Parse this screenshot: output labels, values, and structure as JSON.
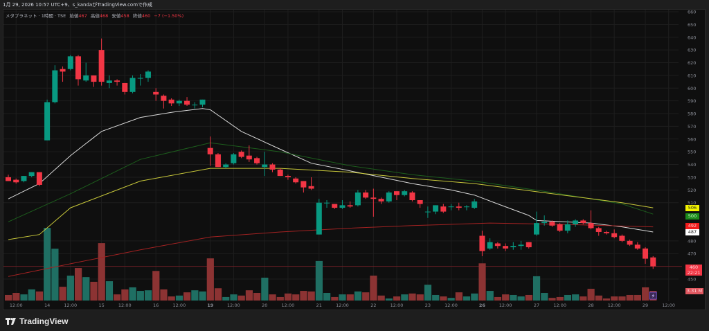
{
  "header": {
    "caption": "1月 29, 2026 10:57 UTC+9、s_kandaがTradingView.comで作成"
  },
  "legend": {
    "symbol": "メタプラネット · 1時間 · TSE",
    "open_label": "始値",
    "open": "467",
    "high_label": "高値",
    "high": "468",
    "low_label": "安値",
    "low": "458",
    "close_label": "終値",
    "close": "460",
    "change": "−7 (−1.50%)"
  },
  "footer": {
    "brand": "TradingView"
  },
  "badges": {
    "ma_yellow": {
      "value": "506",
      "bg": "#f2f200",
      "fg": "#1e1e1e"
    },
    "ma_green": {
      "value": "500",
      "bg": "#1b8a1b",
      "fg": "#d0ffd0"
    },
    "ma_red": {
      "value": "492",
      "bg": "#f21c1c",
      "fg": "#ffd0d0"
    },
    "ma_white": {
      "value": "487",
      "bg": "#ffffff",
      "fg": "#1e1e1e"
    },
    "last_price": {
      "value": "460",
      "countdown": "22:21",
      "bg": "#f23645"
    },
    "last_volume": {
      "value": "3.31 M",
      "bg": "#e0575f"
    }
  },
  "colors": {
    "up": "#089981",
    "down": "#f23645",
    "vol_up": "#1f6f63",
    "vol_down": "#8c3333",
    "grid": "#1e1e1e"
  },
  "chart_data": {
    "type": "candlestick",
    "ylim": [
      445,
      662
    ],
    "y_ticks": [
      660,
      650,
      640,
      630,
      620,
      610,
      600,
      590,
      580,
      570,
      560,
      550,
      540,
      530,
      520,
      510,
      480,
      470,
      450
    ],
    "x_labels": [
      "12:00",
      "14",
      "12:00",
      "15",
      "12:00",
      "16",
      "12:00",
      "19",
      "12:00",
      "20",
      "12:00",
      "21",
      "12:00",
      "22",
      "12:00",
      "23",
      "12:00",
      "26",
      "12:00",
      "27",
      "12:00",
      "28",
      "12:00",
      "29",
      "12:00"
    ],
    "bold_x_labels": [
      "19",
      "26"
    ],
    "ohlc": [
      [
        530,
        532,
        527,
        527
      ],
      [
        528,
        529,
        525,
        526
      ],
      [
        527,
        531,
        526,
        531
      ],
      [
        531,
        534,
        530,
        534
      ],
      [
        534,
        534,
        523,
        524
      ],
      [
        559,
        591,
        559,
        589
      ],
      [
        589,
        618,
        588,
        614
      ],
      [
        615,
        617,
        605,
        613
      ],
      [
        615,
        626,
        614,
        625
      ],
      [
        625,
        626,
        602,
        607
      ],
      [
        606,
        620,
        605,
        610
      ],
      [
        610,
        610,
        601,
        605
      ],
      [
        630,
        639,
        602,
        605
      ],
      [
        604,
        610,
        600,
        606
      ],
      [
        606,
        607,
        602,
        605
      ],
      [
        604,
        604,
        595,
        597
      ],
      [
        597,
        610,
        596,
        608
      ],
      [
        608,
        611,
        602,
        608
      ],
      [
        608,
        614,
        605,
        613
      ],
      [
        597,
        600,
        590,
        595
      ],
      [
        594,
        595,
        584,
        590
      ],
      [
        591,
        592,
        586,
        588
      ],
      [
        588,
        591,
        586,
        590
      ],
      [
        590,
        593,
        586,
        587
      ],
      [
        587,
        589,
        584,
        587
      ],
      [
        587,
        591,
        585,
        591
      ],
      [
        553,
        562,
        539,
        548
      ],
      [
        548,
        549,
        538,
        538
      ],
      [
        538,
        541,
        537,
        540
      ],
      [
        541,
        549,
        540,
        548
      ],
      [
        550,
        551,
        545,
        546
      ],
      [
        547,
        555,
        542,
        544
      ],
      [
        545,
        546,
        540,
        541
      ],
      [
        538,
        550,
        531,
        540
      ],
      [
        540,
        541,
        534,
        536
      ],
      [
        536,
        537,
        531,
        531
      ],
      [
        531,
        532,
        528,
        530
      ],
      [
        529,
        530,
        525,
        526
      ],
      [
        527,
        527,
        518,
        522
      ],
      [
        523,
        530,
        520,
        521
      ],
      [
        485,
        513,
        485,
        510
      ],
      [
        510,
        512,
        506,
        510
      ],
      [
        509,
        509,
        505,
        506
      ],
      [
        506,
        512,
        505,
        508
      ],
      [
        508,
        511,
        506,
        507
      ],
      [
        508,
        520,
        507,
        518
      ],
      [
        518,
        520,
        513,
        514
      ],
      [
        514,
        521,
        499,
        513
      ],
      [
        513,
        514,
        509,
        511
      ],
      [
        511,
        519,
        510,
        518
      ],
      [
        519,
        519,
        512,
        516
      ],
      [
        516,
        520,
        515,
        519
      ],
      [
        518,
        519,
        511,
        512
      ],
      [
        512,
        512,
        506,
        509
      ],
      [
        503,
        507,
        498,
        503
      ],
      [
        503,
        508,
        501,
        508
      ],
      [
        507,
        509,
        502,
        503
      ],
      [
        507,
        509,
        504,
        507
      ],
      [
        507,
        510,
        504,
        506
      ],
      [
        507,
        508,
        504,
        507
      ],
      [
        506,
        513,
        505,
        511
      ],
      [
        484,
        488,
        468,
        472
      ],
      [
        474,
        482,
        473,
        479
      ],
      [
        478,
        479,
        474,
        476
      ],
      [
        476,
        478,
        472,
        474
      ],
      [
        475,
        479,
        473,
        476
      ],
      [
        476,
        480,
        473,
        477
      ],
      [
        479,
        479,
        474,
        475
      ],
      [
        485,
        503,
        484,
        494
      ],
      [
        494,
        500,
        492,
        495
      ],
      [
        495,
        496,
        491,
        492
      ],
      [
        493,
        494,
        487,
        488
      ],
      [
        488,
        496,
        486,
        493
      ],
      [
        493,
        497,
        491,
        496
      ],
      [
        496,
        497,
        493,
        494
      ],
      [
        494,
        504,
        489,
        490
      ],
      [
        490,
        491,
        484,
        487
      ],
      [
        487,
        488,
        485,
        486
      ],
      [
        486,
        489,
        482,
        483
      ],
      [
        484,
        485,
        479,
        480
      ],
      [
        480,
        481,
        476,
        477
      ],
      [
        477,
        479,
        473,
        474
      ],
      [
        474,
        475,
        462,
        466
      ],
      [
        467,
        468,
        458,
        460
      ]
    ],
    "volume_millions": [
      1.9,
      2.6,
      2.1,
      3.8,
      3.1,
      24.8,
      17.7,
      4.7,
      8.5,
      11.1,
      8.0,
      6.4,
      19.6,
      6.6,
      2.1,
      3.8,
      4.5,
      3.3,
      3.5,
      10.1,
      3.8,
      1.4,
      1.7,
      2.8,
      3.5,
      3.1,
      14.4,
      4.2,
      1.2,
      2.1,
      1.7,
      3.5,
      2.6,
      7.8,
      2.1,
      1.2,
      2.4,
      2.1,
      3.3,
      3.1,
      13.5,
      2.6,
      1.2,
      2.1,
      2.1,
      3.1,
      2.8,
      8.5,
      1.7,
      0.7,
      1.4,
      2.1,
      2.4,
      2.1,
      5.4,
      1.9,
      1.4,
      0.9,
      2.8,
      1.4,
      2.4,
      12.7,
      3.3,
      1.2,
      2.1,
      1.9,
      1.4,
      1.9,
      8.3,
      2.6,
      0.9,
      1.2,
      1.9,
      2.1,
      1.4,
      4.0,
      1.7,
      0.7,
      1.4,
      1.4,
      1.9,
      1.9,
      4.5,
      3.31
    ],
    "moving_averages": [
      {
        "color": "#d9d9d9",
        "points": [
          [
            0,
            513
          ],
          [
            4,
            525
          ],
          [
            8,
            547
          ],
          [
            12,
            566
          ],
          [
            17,
            577
          ],
          [
            21,
            581
          ],
          [
            25,
            584
          ],
          [
            26,
            583
          ],
          [
            30,
            566
          ],
          [
            35,
            552
          ],
          [
            39,
            541
          ],
          [
            44,
            535
          ],
          [
            48,
            530
          ],
          [
            52,
            525
          ],
          [
            57,
            520
          ],
          [
            60,
            516
          ],
          [
            63,
            509
          ],
          [
            67,
            500
          ],
          [
            68,
            496
          ],
          [
            75,
            494
          ],
          [
            79,
            491
          ],
          [
            83,
            487
          ]
        ]
      },
      {
        "color": "#1d5e1d",
        "points": [
          [
            0,
            495
          ],
          [
            8,
            517
          ],
          [
            17,
            544
          ],
          [
            26,
            557
          ],
          [
            35,
            550
          ],
          [
            44,
            539
          ],
          [
            52,
            532
          ],
          [
            60,
            527
          ],
          [
            70,
            518
          ],
          [
            79,
            509
          ],
          [
            83,
            501
          ]
        ]
      },
      {
        "color": "#c8c83a",
        "points": [
          [
            0,
            481
          ],
          [
            4,
            485
          ],
          [
            8,
            506
          ],
          [
            17,
            527
          ],
          [
            26,
            537
          ],
          [
            35,
            537
          ],
          [
            44,
            534
          ],
          [
            52,
            529
          ],
          [
            60,
            525
          ],
          [
            70,
            517
          ],
          [
            79,
            510
          ],
          [
            83,
            506
          ]
        ]
      },
      {
        "color": "#a32222",
        "points": [
          [
            0,
            452
          ],
          [
            8,
            462
          ],
          [
            17,
            473
          ],
          [
            26,
            483
          ],
          [
            35,
            487
          ],
          [
            44,
            490
          ],
          [
            52,
            492
          ],
          [
            62,
            494
          ],
          [
            71,
            493
          ],
          [
            83,
            491
          ]
        ]
      }
    ],
    "last_price": 460
  }
}
